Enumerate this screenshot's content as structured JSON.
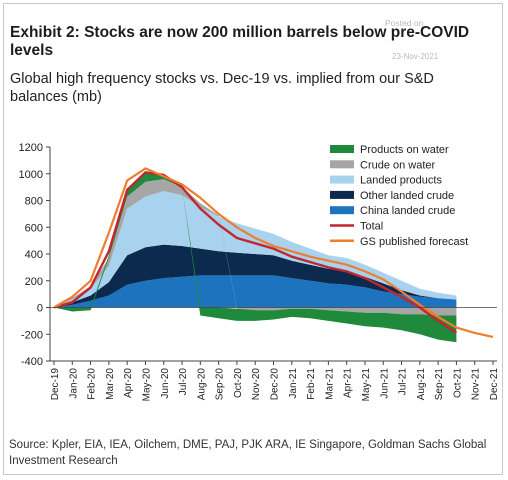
{
  "title": "Exhibit 2: Stocks are now 200 million barrels below pre-COVID levels",
  "subtitle": "Global high frequency stocks vs. Dec-19 vs. implied from our S&D balances (mb)",
  "watermark": {
    "posted_on": "Posted on",
    "date": "23-Nov-2021"
  },
  "source": "Source: Kpler, EIA, IEA, Oilchem, DME, PAJ, PJK ARA, IE Singapore, Goldman Sachs Global Investment Research",
  "chart_data": {
    "type": "area",
    "ylim": [
      -400,
      1200
    ],
    "y_ticks": [
      "1200",
      "1000",
      "800",
      "600",
      "400",
      "200",
      "0",
      "-200",
      "-400"
    ],
    "y_tick_values": [
      1200,
      1000,
      800,
      600,
      400,
      200,
      0,
      -200,
      -400
    ],
    "categories": [
      "Dec-19",
      "Jan-20",
      "Feb-20",
      "Mar-20",
      "Apr-20",
      "May-20",
      "Jun-20",
      "Jul-20",
      "Aug-20",
      "Sep-20",
      "Oct-20",
      "Nov-20",
      "Dec-20",
      "Jan-21",
      "Feb-21",
      "Mar-21",
      "Apr-21",
      "May-21",
      "Jun-21",
      "Jul-21",
      "Aug-21",
      "Sep-21",
      "Oct-21",
      "Nov-21",
      "Dec-21"
    ],
    "legend_position": "top-right",
    "series": [
      {
        "name": "Products on water",
        "color": "#1f8a3c",
        "kind": "area",
        "values": [
          0,
          -30,
          -20,
          20,
          60,
          80,
          40,
          0,
          -60,
          -80,
          -90,
          -80,
          -70,
          -60,
          -70,
          -80,
          -90,
          -100,
          -110,
          -120,
          -150,
          -180,
          -200,
          null,
          null
        ]
      },
      {
        "name": "Crude on water",
        "color": "#a6a6a6",
        "kind": "area",
        "values": [
          0,
          10,
          20,
          60,
          90,
          110,
          90,
          60,
          30,
          10,
          -10,
          -20,
          -20,
          -10,
          -10,
          -20,
          -30,
          -40,
          -40,
          -50,
          -50,
          -60,
          -60,
          null,
          null
        ]
      },
      {
        "name": "Landed products",
        "color": "#a9d2ee",
        "kind": "area",
        "values": [
          0,
          20,
          50,
          120,
          350,
          380,
          400,
          380,
          310,
          260,
          220,
          190,
          160,
          140,
          120,
          100,
          100,
          90,
          80,
          70,
          50,
          40,
          30,
          null,
          null
        ]
      },
      {
        "name": "Other landed crude",
        "color": "#0b2a4e",
        "kind": "area",
        "values": [
          0,
          20,
          40,
          100,
          220,
          250,
          250,
          230,
          200,
          180,
          170,
          160,
          150,
          130,
          120,
          110,
          100,
          80,
          60,
          30,
          10,
          0,
          0,
          null,
          null
        ]
      },
      {
        "name": "China landed crude",
        "color": "#1e73be",
        "kind": "area",
        "values": [
          0,
          20,
          50,
          90,
          170,
          200,
          220,
          230,
          240,
          240,
          240,
          240,
          240,
          220,
          200,
          180,
          170,
          150,
          120,
          100,
          80,
          70,
          60,
          null,
          null
        ]
      },
      {
        "name": "Total",
        "color": "#c1272d",
        "kind": "line",
        "values": [
          0,
          40,
          150,
          420,
          880,
          1010,
          990,
          900,
          740,
          620,
          520,
          480,
          440,
          380,
          340,
          300,
          270,
          220,
          150,
          80,
          0,
          -100,
          -190,
          null,
          null
        ]
      },
      {
        "name": "GS published forecast",
        "color": "#ee7d2d",
        "kind": "line",
        "values": [
          0,
          80,
          200,
          560,
          950,
          1040,
          980,
          920,
          820,
          700,
          600,
          520,
          460,
          420,
          380,
          350,
          320,
          270,
          210,
          120,
          20,
          -70,
          -150,
          -190,
          -220
        ]
      }
    ]
  }
}
